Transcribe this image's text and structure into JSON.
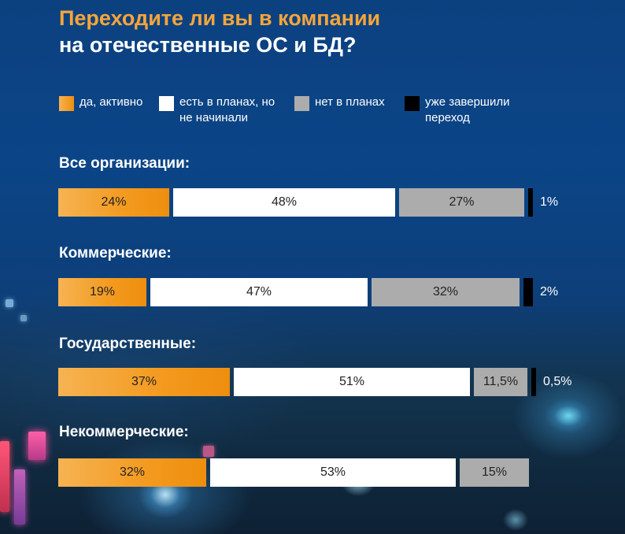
{
  "title": {
    "line1": "Переходите ли вы в компании",
    "line2": "на отечественные ОС и БД?"
  },
  "colors": {
    "title_accent": "#f6a53a",
    "orange": "#f39a1f",
    "white": "#ffffff",
    "gray": "#acacac",
    "black": "#000000"
  },
  "chart_data": {
    "type": "bar",
    "orientation": "horizontal",
    "stacked": true,
    "normalized": "percent",
    "legend_position": "top",
    "legend": [
      {
        "label": "да, активно",
        "color": "#f39a1f"
      },
      {
        "label": "есть в планах, но\nне начинали",
        "color": "#ffffff"
      },
      {
        "label": "нет в планах",
        "color": "#acacac"
      },
      {
        "label": "уже завершили\nпереход",
        "color": "#000000"
      }
    ],
    "groups": [
      {
        "label": "Все организации:",
        "values": [
          24,
          48,
          27,
          1
        ],
        "labels": [
          "24%",
          "48%",
          "27%",
          "1%"
        ]
      },
      {
        "label": "Коммерческие:",
        "values": [
          19,
          47,
          32,
          2
        ],
        "labels": [
          "19%",
          "47%",
          "32%",
          "2%"
        ]
      },
      {
        "label": "Государственные:",
        "values": [
          37,
          51,
          11.5,
          0.5
        ],
        "labels": [
          "37%",
          "51%",
          "11,5%",
          "0,5%"
        ]
      },
      {
        "label": "Некоммерческие:",
        "values": [
          32,
          53,
          15,
          0
        ],
        "labels": [
          "32%",
          "53%",
          "15%",
          ""
        ]
      }
    ]
  }
}
